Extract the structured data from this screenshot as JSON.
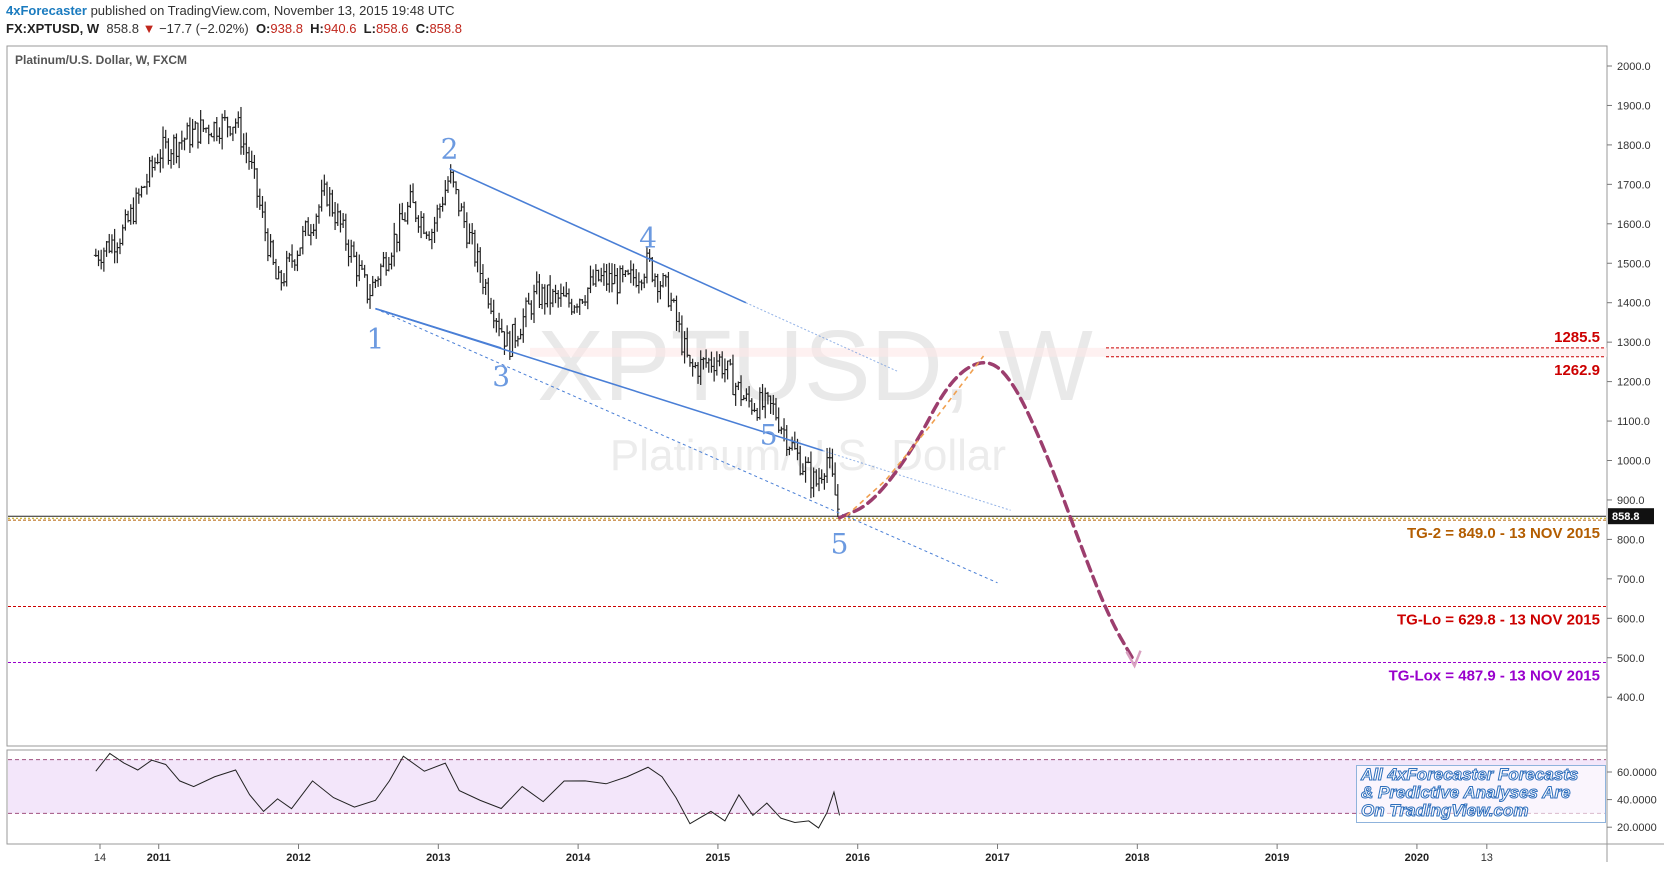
{
  "header": {
    "publisher": "4xForecaster",
    "published_text": " published on TradingView.com, November 13, 2015 19:48 UTC",
    "symbol": "FX:XPTUSD, W",
    "last": "858.8",
    "change": "−17.7 (−2.02%)",
    "open_label": "O:",
    "open": "938.8",
    "high_label": "H:",
    "high": "940.6",
    "low_label": "L:",
    "low": "858.6",
    "close_label": "C:",
    "close": "858.8"
  },
  "panel_title": "Platinum/U.S. Dollar, W, FXCM",
  "watermark": {
    "symbol": "XPTUSD, W",
    "name": "Platinum/U.S. Dollar"
  },
  "promo": {
    "line1": "All 4xForecaster Forecasts",
    "line2": "& Predictive Analyses Are",
    "line3": "On TradingView.com"
  },
  "colors": {
    "price_bars": "#222222",
    "channel": "#4a7fd6",
    "wave_labels": "#6c9ae0",
    "forecast_path": "#9c3e6e",
    "orange_path": "#f0a050",
    "tg2": "#b35d00",
    "tglo": "#cc0000",
    "tglox": "#9900cc",
    "resistance": "#cc0000",
    "rsi_band": "#f3e6fa"
  },
  "chart_data": [
    {
      "type": "bar",
      "subtype": "ohlc",
      "timeframe": "W",
      "x_ticks": [
        "14",
        "2011",
        "2012",
        "2013",
        "2014",
        "2015",
        "2016",
        "2017",
        "2018",
        "2019",
        "2020",
        "13"
      ],
      "y_ticks": [
        "2000.0",
        "1900.0",
        "1800.0",
        "1700.0",
        "1600.0",
        "1500.0",
        "1400.0",
        "1300.0",
        "1200.0",
        "1100.0",
        "1000.0",
        "900.0",
        "800.0",
        "700.0",
        "600.0",
        "500.0",
        "400.0"
      ],
      "ylim": [
        360,
        2040
      ],
      "last_price_label": "858.8",
      "last_price": 858.8,
      "close_series": {
        "x": [
          2010.55,
          2010.75,
          2011.0,
          2011.3,
          2011.55,
          2011.65,
          2011.85,
          2012.2,
          2012.5,
          2012.8,
          2012.95,
          2013.08,
          2013.3,
          2013.5,
          2013.7,
          2013.95,
          2014.15,
          2014.35,
          2014.5,
          2014.65,
          2014.8,
          2015.0,
          2015.2,
          2015.4,
          2015.55,
          2015.7,
          2015.78,
          2015.87
        ],
        "y": [
          1520,
          1580,
          1780,
          1840,
          1860,
          1760,
          1440,
          1680,
          1420,
          1650,
          1580,
          1720,
          1480,
          1290,
          1420,
          1400,
          1460,
          1450,
          1500,
          1420,
          1230,
          1260,
          1150,
          1130,
          1020,
          940,
          1010,
          858.8
        ]
      },
      "wave_labels": [
        {
          "label": "1",
          "x": 2012.55,
          "y": 1385
        },
        {
          "label": "2",
          "x": 2013.08,
          "y": 1740
        },
        {
          "label": "3",
          "x": 2013.45,
          "y": 1280
        },
        {
          "label": "4",
          "x": 2014.5,
          "y": 1515
        },
        {
          "label": "5",
          "x": 2015.42,
          "y": 1025
        },
        {
          "label": "5",
          "x": 2015.87,
          "y": 855
        }
      ],
      "channel_lines": [
        {
          "x": [
            2013.08,
            2015.2
          ],
          "y": [
            1740,
            1400
          ]
        },
        {
          "x": [
            2012.55,
            2015.75
          ],
          "y": [
            1385,
            1025
          ]
        }
      ],
      "levels": [
        {
          "label": "1285.5",
          "value": 1285.5
        },
        {
          "label": "1262.9",
          "value": 1262.9
        },
        {
          "label": "TG-2 = 849.0 - 13 NOV 2015",
          "value": 849.0
        },
        {
          "label": "TG-Lo = 629.8 - 13 NOV 2015",
          "value": 629.8
        },
        {
          "label": "TG-Lox = 487.9 - 13 NOV 2015",
          "value": 487.9
        }
      ],
      "forecast_path": {
        "x": [
          2015.87,
          2016.1,
          2016.4,
          2016.65,
          2016.9,
          2017.1,
          2017.35,
          2017.6,
          2017.8,
          2017.98
        ],
        "y": [
          855,
          890,
          1030,
          1200,
          1262,
          1210,
          1020,
          780,
          600,
          490
        ]
      },
      "orange_path": {
        "x": [
          2015.92,
          2016.2,
          2016.5,
          2016.9
        ],
        "y": [
          860,
          950,
          1080,
          1265
        ]
      }
    },
    {
      "type": "line",
      "name": "oscillator",
      "y_ticks": [
        "60.0000",
        "40.0000",
        "20.0000"
      ],
      "ylim": [
        15,
        78
      ],
      "bands": [
        69,
        30
      ],
      "x": [
        2010.55,
        2010.65,
        2010.75,
        2010.85,
        2010.95,
        2011.05,
        2011.15,
        2011.25,
        2011.4,
        2011.55,
        2011.65,
        2011.75,
        2011.85,
        2011.95,
        2012.1,
        2012.25,
        2012.4,
        2012.55,
        2012.65,
        2012.75,
        2012.9,
        2013.05,
        2013.15,
        2013.3,
        2013.45,
        2013.6,
        2013.75,
        2013.9,
        2014.05,
        2014.2,
        2014.35,
        2014.5,
        2014.6,
        2014.7,
        2014.8,
        2014.95,
        2015.05,
        2015.15,
        2015.25,
        2015.35,
        2015.45,
        2015.55,
        2015.65,
        2015.72,
        2015.78,
        2015.83,
        2015.87
      ],
      "y": [
        62,
        72,
        68,
        60,
        70,
        64,
        55,
        48,
        58,
        60,
        45,
        30,
        42,
        32,
        55,
        40,
        36,
        38,
        55,
        70,
        62,
        65,
        48,
        38,
        35,
        48,
        40,
        52,
        55,
        50,
        58,
        62,
        58,
        40,
        24,
        30,
        26,
        42,
        30,
        36,
        28,
        22,
        26,
        18,
        32,
        44,
        30
      ]
    }
  ]
}
